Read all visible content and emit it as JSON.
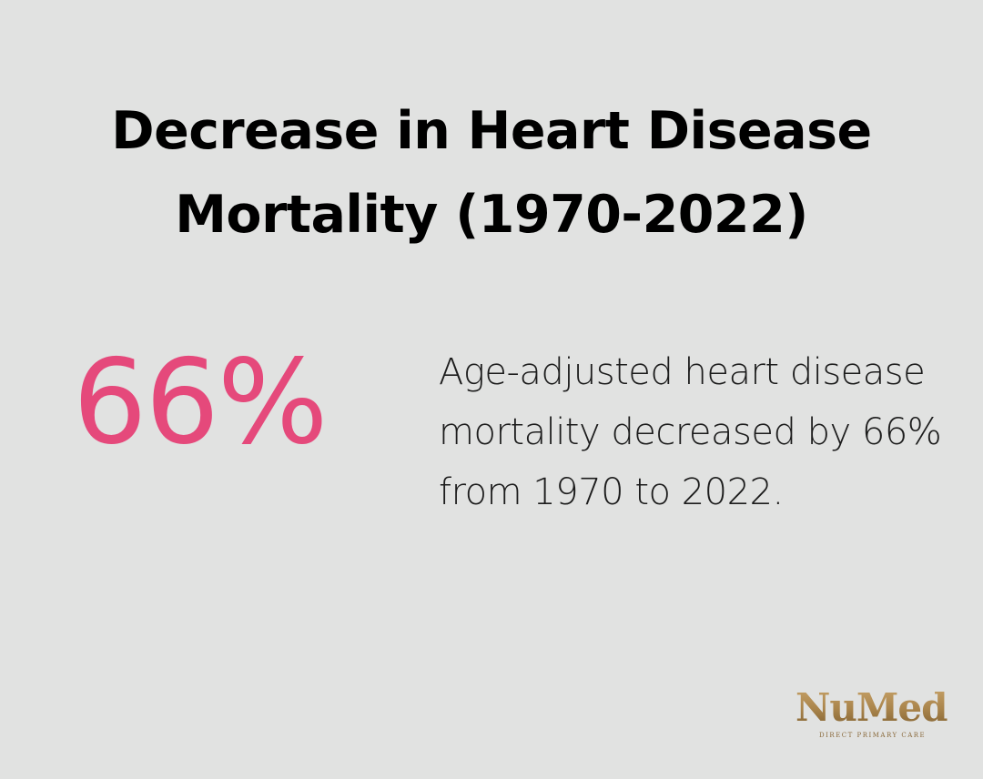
{
  "title": "Decrease in Heart Disease Mortality (1970-2022)",
  "stat": {
    "value": "66%",
    "color": "#e5497b"
  },
  "description": "Age-adjusted heart disease mortality decreased by 66% from 1970 to 2022.",
  "logo": {
    "name": "NuMed",
    "tagline": "DIRECT PRIMARY CARE",
    "color": "#a8834a"
  },
  "colors": {
    "background": "#e1e2e1",
    "text": "#000000",
    "accent": "#e5497b"
  }
}
